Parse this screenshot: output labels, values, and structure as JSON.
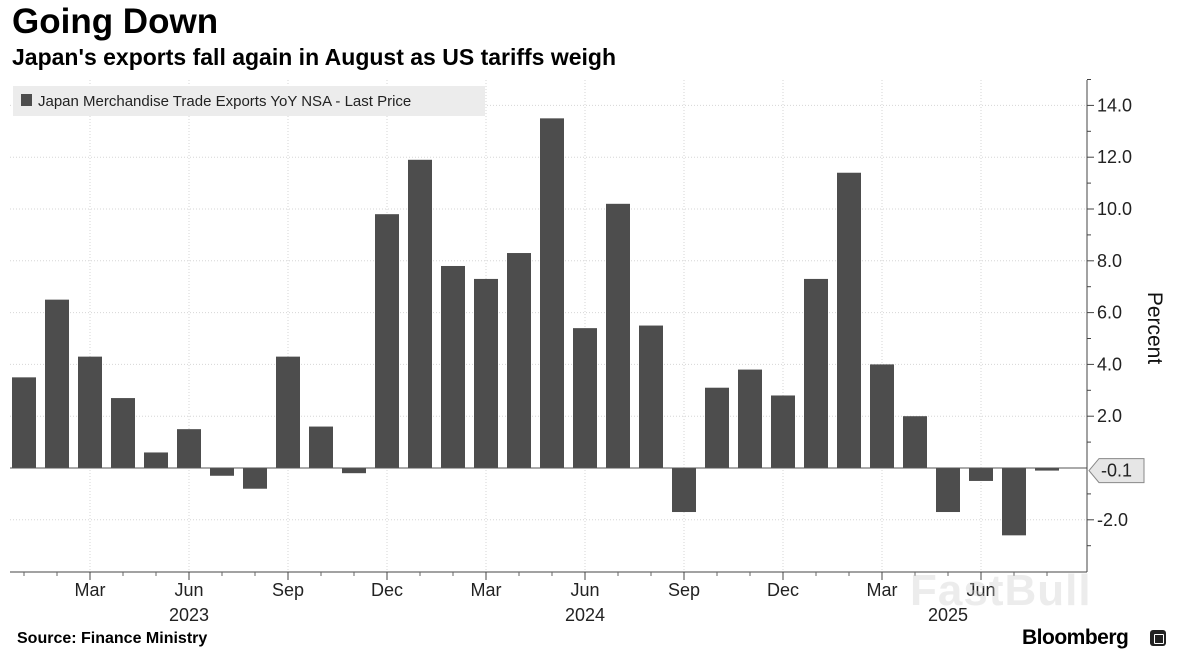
{
  "header": {
    "title": "Going Down",
    "subtitle": "Japan's exports fall again in August as US tariffs weigh"
  },
  "footer": {
    "source": "Source: Finance Ministry",
    "brand": "Bloomberg",
    "watermark": "FastBull"
  },
  "chart_data": {
    "type": "bar",
    "title": "Going Down",
    "subtitle": "Japan's exports fall again in August as US tariffs weigh",
    "ylabel": "Percent",
    "xlabel": "",
    "ylim": [
      -4,
      15
    ],
    "yticks": [
      14.0,
      12.0,
      10.0,
      8.0,
      6.0,
      4.0,
      2.0,
      -2.0
    ],
    "legend": {
      "label": "Japan Merchandise Trade Exports YoY NSA - Last Price",
      "placement": "top-left"
    },
    "last_value_label": "-0.1",
    "color": "#4d4d4d",
    "categories": [
      "2023-01",
      "2023-02",
      "2023-03",
      "2023-04",
      "2023-05",
      "2023-06",
      "2023-07",
      "2023-08",
      "2023-09",
      "2023-10",
      "2023-11",
      "2023-12",
      "2024-01",
      "2024-02",
      "2024-03",
      "2024-04",
      "2024-05",
      "2024-06",
      "2024-07",
      "2024-08",
      "2024-09",
      "2024-10",
      "2024-11",
      "2024-12",
      "2025-01",
      "2025-02",
      "2025-03",
      "2025-04",
      "2025-05",
      "2025-06",
      "2025-07",
      "2025-08"
    ],
    "values": [
      3.5,
      6.5,
      4.3,
      2.7,
      0.6,
      1.5,
      -0.3,
      -0.8,
      4.3,
      1.6,
      -0.2,
      9.8,
      11.9,
      7.8,
      7.3,
      8.3,
      13.5,
      5.4,
      10.2,
      5.5,
      -1.7,
      3.1,
      3.8,
      2.8,
      7.3,
      11.4,
      4.0,
      2.0,
      -1.7,
      -0.5,
      -2.6,
      -0.1
    ],
    "month_ticks": [
      {
        "index": 2,
        "label": "Mar"
      },
      {
        "index": 5,
        "label": "Jun"
      },
      {
        "index": 8,
        "label": "Sep"
      },
      {
        "index": 11,
        "label": "Dec"
      },
      {
        "index": 14,
        "label": "Mar"
      },
      {
        "index": 17,
        "label": "Jun"
      },
      {
        "index": 20,
        "label": "Sep"
      },
      {
        "index": 23,
        "label": "Dec"
      },
      {
        "index": 26,
        "label": "Mar"
      },
      {
        "index": 29,
        "label": "Jun"
      }
    ],
    "year_ticks": [
      {
        "index": 5,
        "label": "2023"
      },
      {
        "index": 17,
        "label": "2024"
      },
      {
        "index": 28,
        "label": "2025"
      }
    ]
  }
}
